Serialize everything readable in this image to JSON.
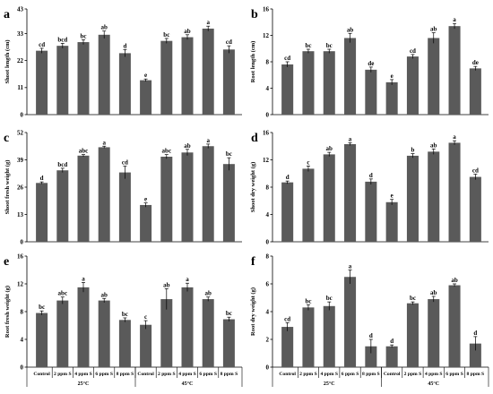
{
  "colors": {
    "bar": "#5a5a5a",
    "axis": "#000000"
  },
  "groups": [
    "25°C",
    "45°C"
  ],
  "categories": [
    "Control",
    "2 ppm S",
    "4 ppm S",
    "6 ppm S",
    "8 ppm S"
  ],
  "chart_data": [
    {
      "id": "a",
      "type": "bar",
      "panel_label": "a",
      "ylabel": "Shoot length (cm)",
      "ylim": [
        0,
        43
      ],
      "yticks": [
        0,
        11,
        22,
        33,
        43
      ],
      "values": [
        26.0,
        28.0,
        29.5,
        32.5,
        25.0,
        14.0,
        30.0,
        31.5,
        35.0,
        26.5
      ],
      "errors": [
        1.0,
        1.0,
        1.0,
        1.5,
        1.5,
        0.5,
        1.0,
        1.0,
        1.0,
        1.5
      ],
      "letters": [
        "cd",
        "bcd",
        "bc",
        "ab",
        "d",
        "e",
        "bc",
        "ab",
        "a",
        "cd"
      ]
    },
    {
      "id": "b",
      "type": "bar",
      "panel_label": "b",
      "ylabel": "Root length (cm)",
      "ylim": [
        0,
        16
      ],
      "yticks": [
        0,
        4,
        8,
        12,
        16
      ],
      "values": [
        7.6,
        9.6,
        9.6,
        11.6,
        6.8,
        4.9,
        8.8,
        11.6,
        13.4,
        7.0
      ],
      "errors": [
        0.4,
        0.3,
        0.3,
        0.7,
        0.4,
        0.4,
        0.3,
        0.8,
        0.4,
        0.3
      ],
      "letters": [
        "cd",
        "bc",
        "bc",
        "ab",
        "de",
        "e",
        "cd",
        "ab",
        "a",
        "de"
      ]
    },
    {
      "id": "c",
      "type": "bar",
      "panel_label": "c",
      "ylabel": "Shoot fresh weight (g)",
      "ylim": [
        0,
        52
      ],
      "yticks": [
        0,
        13,
        26,
        39,
        52
      ],
      "values": [
        28.0,
        34.0,
        41.0,
        45.0,
        33.0,
        17.5,
        40.5,
        42.5,
        45.5,
        37.0
      ],
      "errors": [
        0.5,
        1.0,
        0.5,
        0.5,
        3.0,
        1.0,
        1.0,
        1.5,
        1.0,
        3.0
      ],
      "letters": [
        "d",
        "bcd",
        "abc",
        "a",
        "cd",
        "e",
        "abc",
        "ab",
        "a",
        "bc"
      ]
    },
    {
      "id": "d",
      "type": "bar",
      "panel_label": "d",
      "ylabel": "Shoot dry weight (g)",
      "ylim": [
        0,
        16
      ],
      "yticks": [
        0,
        4,
        8,
        12,
        16
      ],
      "values": [
        8.7,
        10.7,
        12.8,
        14.3,
        8.8,
        5.8,
        12.6,
        13.2,
        14.5,
        9.5
      ],
      "errors": [
        0.2,
        0.4,
        0.3,
        0.2,
        0.4,
        0.4,
        0.3,
        0.4,
        0.3,
        0.4
      ],
      "letters": [
        "d",
        "c",
        "ab",
        "a",
        "d",
        "e",
        "b",
        "ab",
        "a",
        "cd"
      ]
    },
    {
      "id": "e",
      "type": "bar",
      "panel_label": "e",
      "ylabel": "Root fresh weight (g)",
      "ylim": [
        0,
        16
      ],
      "yticks": [
        0,
        4,
        8,
        12,
        16
      ],
      "values": [
        7.8,
        9.6,
        11.5,
        9.6,
        6.8,
        6.1,
        9.8,
        11.5,
        9.8,
        6.9
      ],
      "errors": [
        0.3,
        0.5,
        0.7,
        0.3,
        0.3,
        0.6,
        1.5,
        0.6,
        0.3,
        0.3
      ],
      "letters": [
        "bc",
        "abc",
        "a",
        "ab",
        "bc",
        "c",
        "ab",
        "a",
        "ab",
        "bc"
      ]
    },
    {
      "id": "f",
      "type": "bar",
      "panel_label": "f",
      "ylabel": "Root dry weight (g)",
      "ylim": [
        0,
        8
      ],
      "yticks": [
        0,
        2,
        4,
        6,
        8
      ],
      "values": [
        2.9,
        4.3,
        4.4,
        6.5,
        1.5,
        1.5,
        4.6,
        4.9,
        5.9,
        1.7
      ],
      "errors": [
        0.3,
        0.2,
        0.3,
        0.5,
        0.5,
        0.1,
        0.1,
        0.2,
        0.1,
        0.5
      ],
      "letters": [
        "cd",
        "bc",
        "bc",
        "a",
        "d",
        "d",
        "bc",
        "ab",
        "ab",
        "d"
      ]
    }
  ]
}
